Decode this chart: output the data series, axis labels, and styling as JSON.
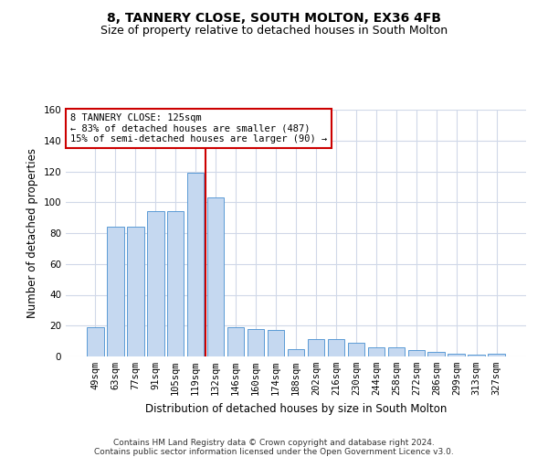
{
  "title": "8, TANNERY CLOSE, SOUTH MOLTON, EX36 4FB",
  "subtitle": "Size of property relative to detached houses in South Molton",
  "xlabel": "Distribution of detached houses by size in South Molton",
  "ylabel": "Number of detached properties",
  "categories": [
    "49sqm",
    "63sqm",
    "77sqm",
    "91sqm",
    "105sqm",
    "119sqm",
    "132sqm",
    "146sqm",
    "160sqm",
    "174sqm",
    "188sqm",
    "202sqm",
    "216sqm",
    "230sqm",
    "244sqm",
    "258sqm",
    "272sqm",
    "286sqm",
    "299sqm",
    "313sqm",
    "327sqm"
  ],
  "values": [
    19,
    84,
    84,
    94,
    94,
    119,
    103,
    19,
    18,
    17,
    5,
    11,
    11,
    9,
    6,
    6,
    4,
    3,
    2,
    1,
    2
  ],
  "bar_color": "#c5d8f0",
  "bar_edge_color": "#5b9bd5",
  "highlight_line_color": "#cc0000",
  "annotation_text": "8 TANNERY CLOSE: 125sqm\n← 83% of detached houses are smaller (487)\n15% of semi-detached houses are larger (90) →",
  "annotation_box_color": "#ffffff",
  "annotation_box_edge_color": "#cc0000",
  "ylim": [
    0,
    160
  ],
  "yticks": [
    0,
    20,
    40,
    60,
    80,
    100,
    120,
    140,
    160
  ],
  "footer_text": "Contains HM Land Registry data © Crown copyright and database right 2024.\nContains public sector information licensed under the Open Government Licence v3.0.",
  "background_color": "#ffffff",
  "grid_color": "#d0d8e8",
  "title_fontsize": 10,
  "subtitle_fontsize": 9,
  "tick_fontsize": 7.5,
  "label_fontsize": 8.5,
  "annotation_fontsize": 7.5,
  "footer_fontsize": 6.5
}
